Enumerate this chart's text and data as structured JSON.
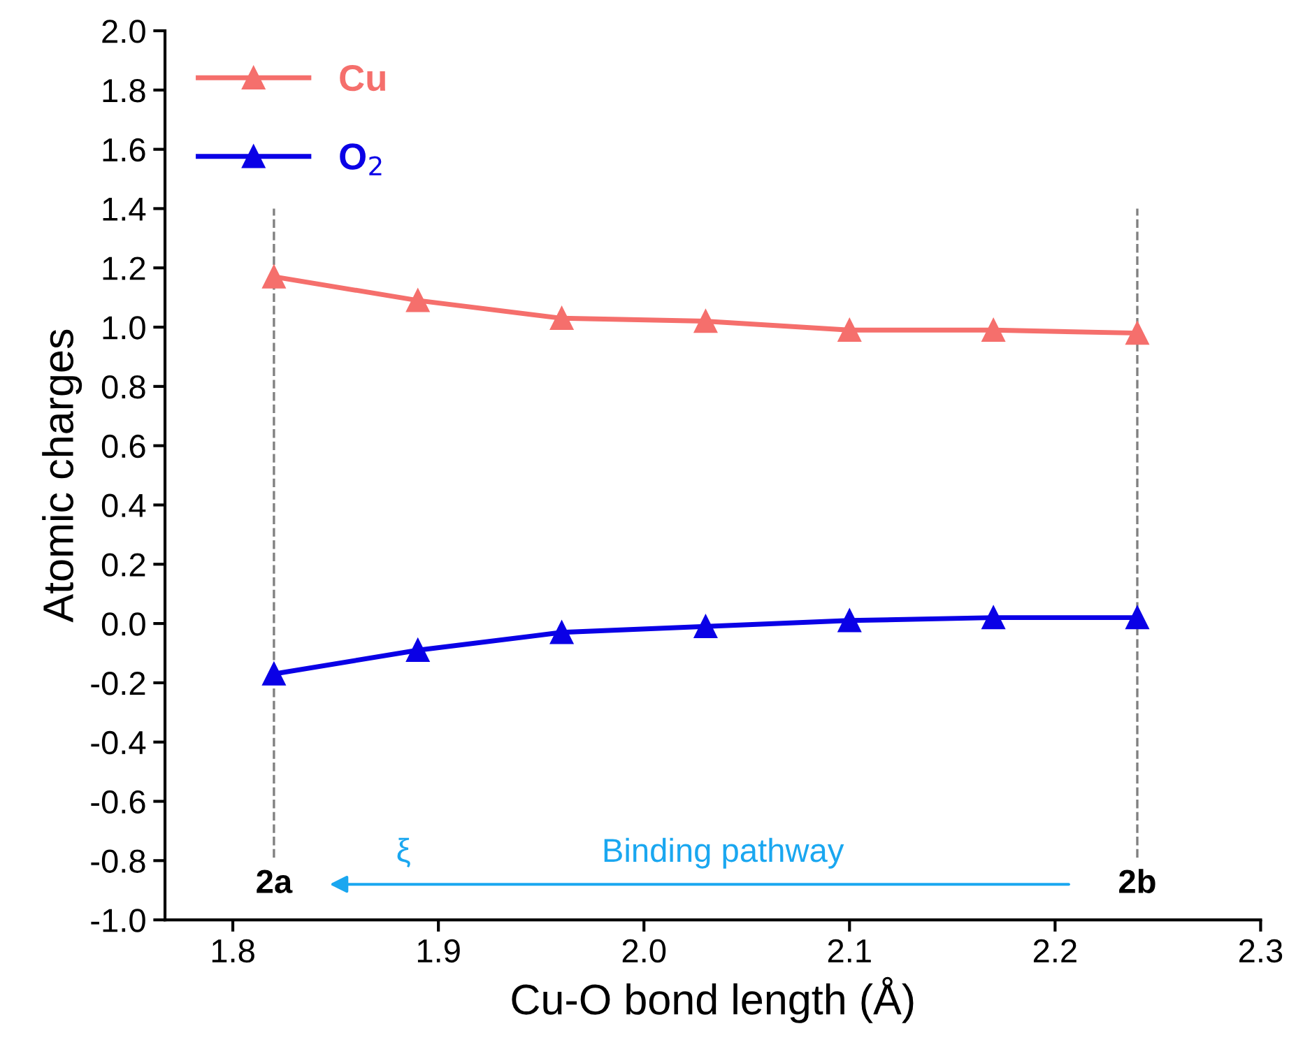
{
  "chart_data": {
    "type": "line",
    "xlabel": "Cu-O bond length (Å)",
    "ylabel": "Atomic charges",
    "x": [
      1.82,
      1.89,
      1.96,
      2.03,
      2.1,
      2.17,
      2.24
    ],
    "series": [
      {
        "name": "Cu",
        "color": "#f56f6c",
        "values": [
          1.17,
          1.09,
          1.03,
          1.02,
          0.99,
          0.99,
          0.98
        ]
      },
      {
        "name": "O$_{2}$",
        "color": "#0a00e6",
        "values": [
          -0.17,
          -0.09,
          -0.03,
          -0.01,
          0.01,
          0.02,
          0.02
        ]
      }
    ],
    "xlim": [
      1.767,
      2.3
    ],
    "xticks": [
      1.8,
      1.9,
      {
        "value": 2,
        "label": "2.0"
      },
      2.1,
      2.2,
      2.3
    ],
    "ylim": [
      -1.0,
      2.0
    ],
    "yticks": [
      {
        "value": -1,
        "label": "-1.0"
      },
      -0.8,
      -0.6,
      -0.4,
      -0.2,
      {
        "value": 0,
        "label": "0.0"
      },
      0.2,
      0.4,
      0.6,
      0.8,
      {
        "value": 1,
        "label": "1.0"
      },
      1.2,
      1.4,
      1.6,
      1.8,
      {
        "value": 2,
        "label": "2.0"
      }
    ],
    "ref_lines": [
      {
        "axis": "x",
        "value": 1.82,
        "color": "#808080",
        "line_style": "dashed"
      },
      {
        "axis": "x",
        "value": 2.24,
        "color": "#808080",
        "line_style": "dashed"
      }
    ],
    "annotations": [
      "2a",
      "2b",
      "ξ",
      "Binding pathway"
    ],
    "marker": "triangle",
    "line_style": "solid",
    "grid": false,
    "legend": "top left"
  }
}
